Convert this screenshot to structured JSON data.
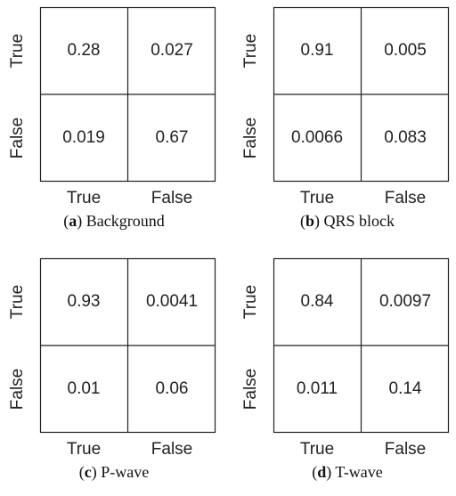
{
  "chart_data": [
    {
      "type": "heatmap",
      "row_labels": [
        "True",
        "False"
      ],
      "col_labels": [
        "True",
        "False"
      ],
      "values": [
        [
          "0.28",
          "0.027"
        ],
        [
          "0.019",
          "0.67"
        ]
      ],
      "caption_letter": "a",
      "caption_text": "Background"
    },
    {
      "type": "heatmap",
      "row_labels": [
        "True",
        "False"
      ],
      "col_labels": [
        "True",
        "False"
      ],
      "values": [
        [
          "0.91",
          "0.005"
        ],
        [
          "0.0066",
          "0.083"
        ]
      ],
      "caption_letter": "b",
      "caption_text": "QRS block"
    },
    {
      "type": "heatmap",
      "row_labels": [
        "True",
        "False"
      ],
      "col_labels": [
        "True",
        "False"
      ],
      "values": [
        [
          "0.93",
          "0.0041"
        ],
        [
          "0.01",
          "0.06"
        ]
      ],
      "caption_letter": "c",
      "caption_text": "P-wave"
    },
    {
      "type": "heatmap",
      "row_labels": [
        "True",
        "False"
      ],
      "col_labels": [
        "True",
        "False"
      ],
      "values": [
        [
          "0.84",
          "0.0097"
        ],
        [
          "0.011",
          "0.14"
        ]
      ],
      "caption_letter": "d",
      "caption_text": "T-wave"
    }
  ],
  "colors": {
    "grid_line": "#222222",
    "cell_fill": "#ffffff"
  }
}
